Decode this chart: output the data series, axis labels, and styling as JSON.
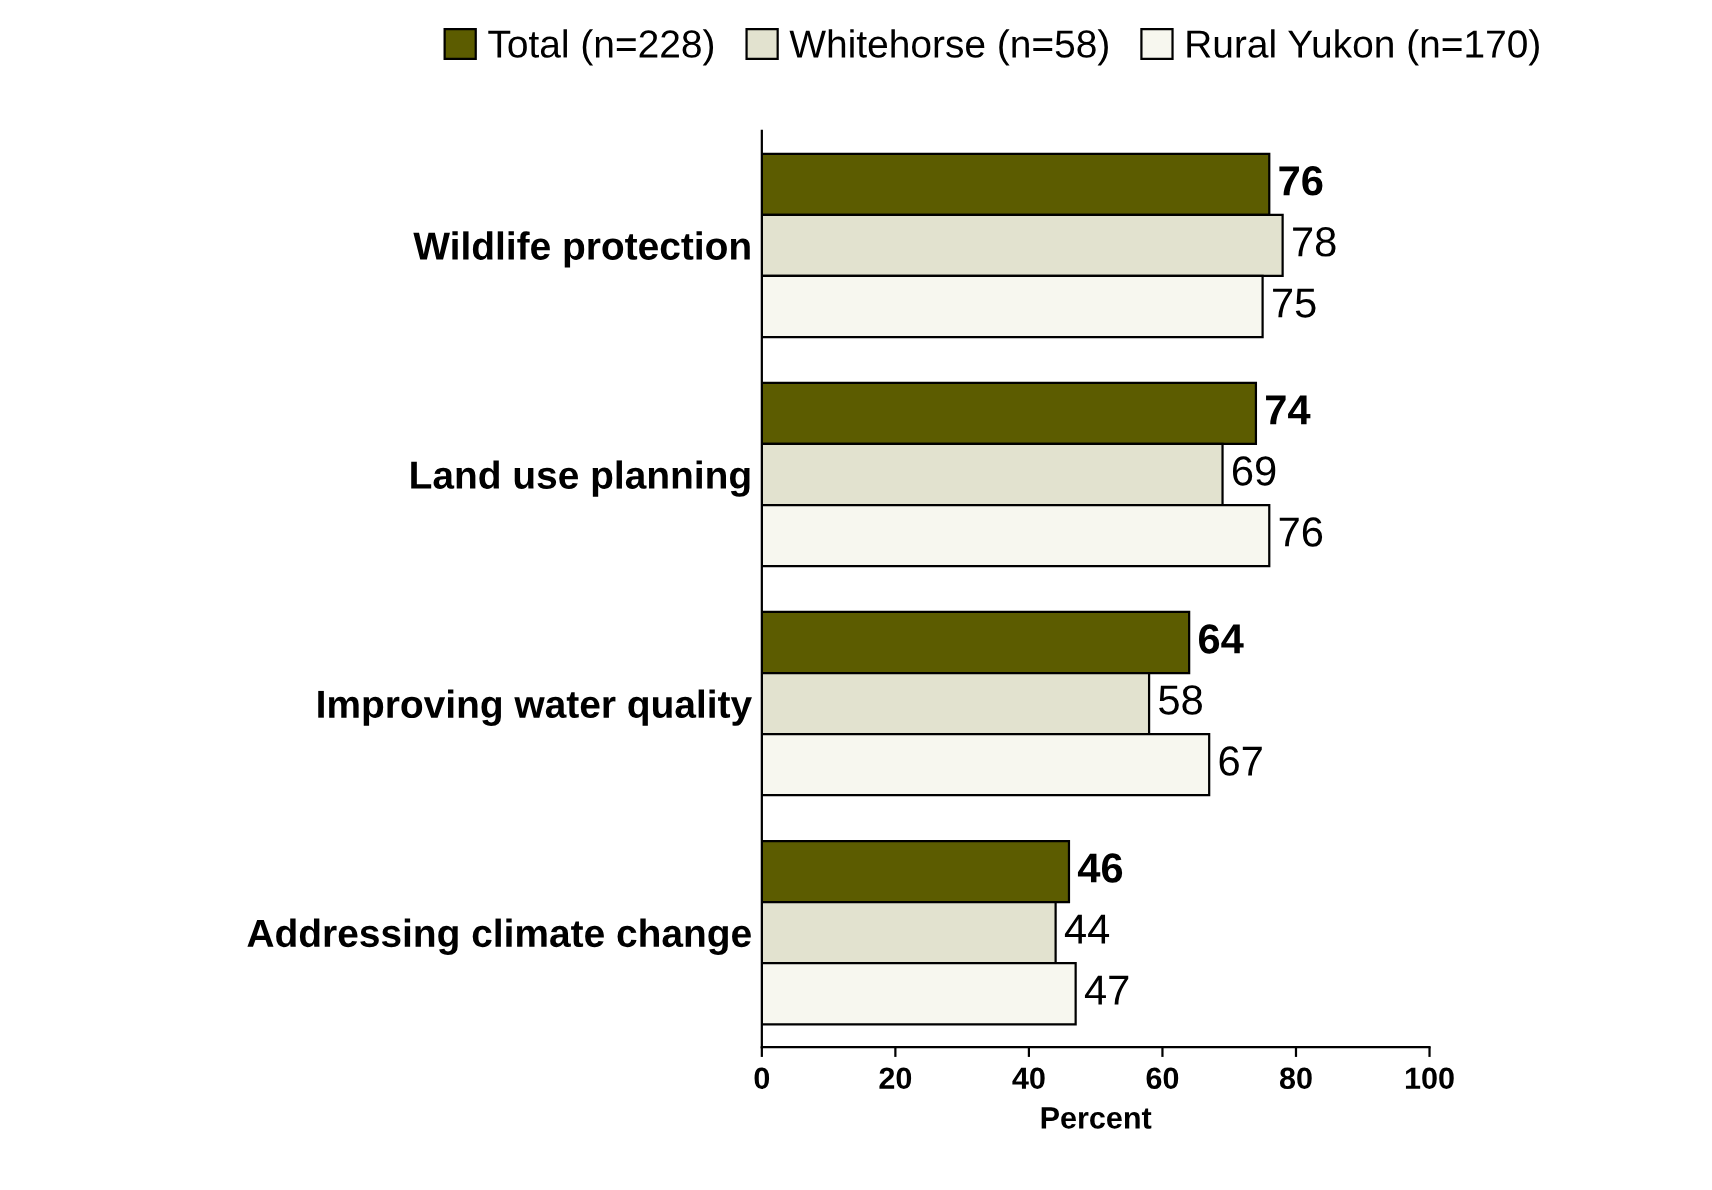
{
  "chart_data": {
    "type": "bar",
    "orientation": "horizontal",
    "xlabel": "Percent",
    "categories": [
      "Wildlife protection",
      "Land use planning",
      "Improving water quality",
      "Addressing climate change"
    ],
    "series": [
      {
        "name": "Total (n=228)",
        "color": "#5c5c00",
        "values": [
          76,
          74,
          64,
          46
        ]
      },
      {
        "name": "Whitehorse (n=58)",
        "color": "#e2e2cf",
        "values": [
          78,
          69,
          58,
          44
        ]
      },
      {
        "name": "Rural Yukon (n=170)",
        "color": "#f7f7ef",
        "values": [
          75,
          76,
          67,
          47
        ]
      }
    ],
    "xlim": [
      0,
      100
    ],
    "xticks": [
      0,
      20,
      40,
      60,
      80,
      100
    ],
    "data_labels": true,
    "grid": false,
    "legend": "top"
  }
}
